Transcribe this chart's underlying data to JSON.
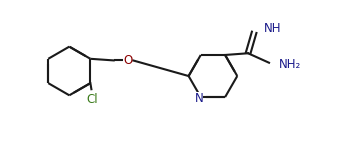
{
  "bg_color": "#ffffff",
  "bond_color": "#1a1a1a",
  "cl_color": "#3a7a1a",
  "n_color": "#1a1a8a",
  "o_color": "#8b0000",
  "bond_lw": 1.5,
  "figsize": [
    3.38,
    1.47
  ],
  "dpi": 100,
  "xlim": [
    0,
    10
  ],
  "ylim": [
    0,
    4.35
  ]
}
